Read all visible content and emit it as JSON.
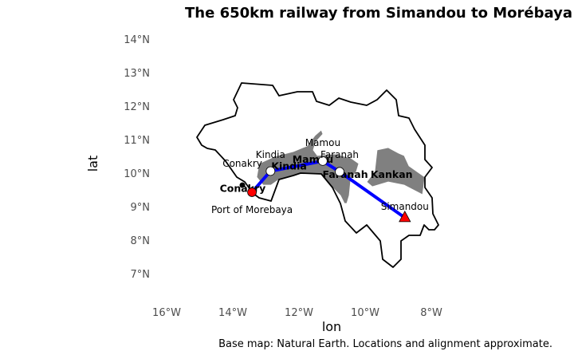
{
  "chart_data": {
    "type": "map",
    "title": "The 650km railway from Simandou to Morébaya",
    "xlabel": "lon",
    "ylabel": "lat",
    "caption": "Base map: Natural Earth. Locations and alignment approximate.",
    "xlim": [
      -17,
      -6
    ],
    "ylim": [
      6,
      14.5
    ],
    "x_ticks": [
      {
        "v": -16,
        "label": "16°W"
      },
      {
        "v": -14,
        "label": "14°W"
      },
      {
        "v": -12,
        "label": "12°W"
      },
      {
        "v": -10,
        "label": "10°W"
      },
      {
        "v": -8,
        "label": "8°W"
      }
    ],
    "y_ticks": [
      {
        "v": 7,
        "label": "7°N"
      },
      {
        "v": 8,
        "label": "8°N"
      },
      {
        "v": 9,
        "label": "9°N"
      },
      {
        "v": 10,
        "label": "10°N"
      },
      {
        "v": 11,
        "label": "11°N"
      },
      {
        "v": 12,
        "label": "12°N"
      },
      {
        "v": 13,
        "label": "13°N"
      },
      {
        "v": 14,
        "label": "14°N"
      }
    ],
    "railway": {
      "color": "#0000ff",
      "points": [
        [
          -13.42,
          9.43
        ],
        [
          -12.86,
          10.06
        ],
        [
          -11.28,
          10.36
        ],
        [
          -10.77,
          10.04
        ],
        [
          -8.8,
          8.67
        ]
      ]
    },
    "highlighted_regions": {
      "color": "#808080",
      "names": [
        "Conakry",
        "Kindia",
        "Mamou",
        "Faranah",
        "Kankan"
      ]
    },
    "region_labels": [
      {
        "name": "Conakry",
        "lon": -13.7,
        "lat": 9.53
      },
      {
        "name": "Kindia",
        "lon": -12.3,
        "lat": 10.2
      },
      {
        "name": "Mamou",
        "lon": -11.58,
        "lat": 10.4
      },
      {
        "name": "Faranah",
        "lon": -10.6,
        "lat": 9.95
      },
      {
        "name": "Kankan",
        "lon": -9.2,
        "lat": 9.95
      }
    ],
    "places": [
      {
        "name": "Port of Morebaya",
        "display": "Port of Morebaya",
        "lon": -13.42,
        "lat": 9.43,
        "marker": "circle",
        "fill": "#ff0000",
        "label_lat": 8.9
      },
      {
        "name": "Conakry",
        "display": "Conakry",
        "lon": -13.71,
        "lat": 9.64,
        "marker": "dot",
        "fill": "#000000",
        "label_lat": 10.28
      },
      {
        "name": "Kindia",
        "display": "Kindia",
        "lon": -12.86,
        "lat": 10.06,
        "marker": "circle",
        "fill": "#ffffff",
        "label_lat": 10.55
      },
      {
        "name": "Mamou",
        "display": "Mamou",
        "lon": -11.28,
        "lat": 10.36,
        "marker": "circle",
        "fill": "#ffffff",
        "label_lat": 10.9
      },
      {
        "name": "Faranah",
        "display": "Faranah",
        "lon": -10.77,
        "lat": 10.04,
        "marker": "circle",
        "fill": "#ffffff",
        "label_lat": 10.55
      },
      {
        "name": "Simandou",
        "display": "Simandou",
        "lon": -8.8,
        "lat": 8.67,
        "marker": "triangle",
        "fill": "#ff0000",
        "label_lat": 9.0
      }
    ]
  }
}
